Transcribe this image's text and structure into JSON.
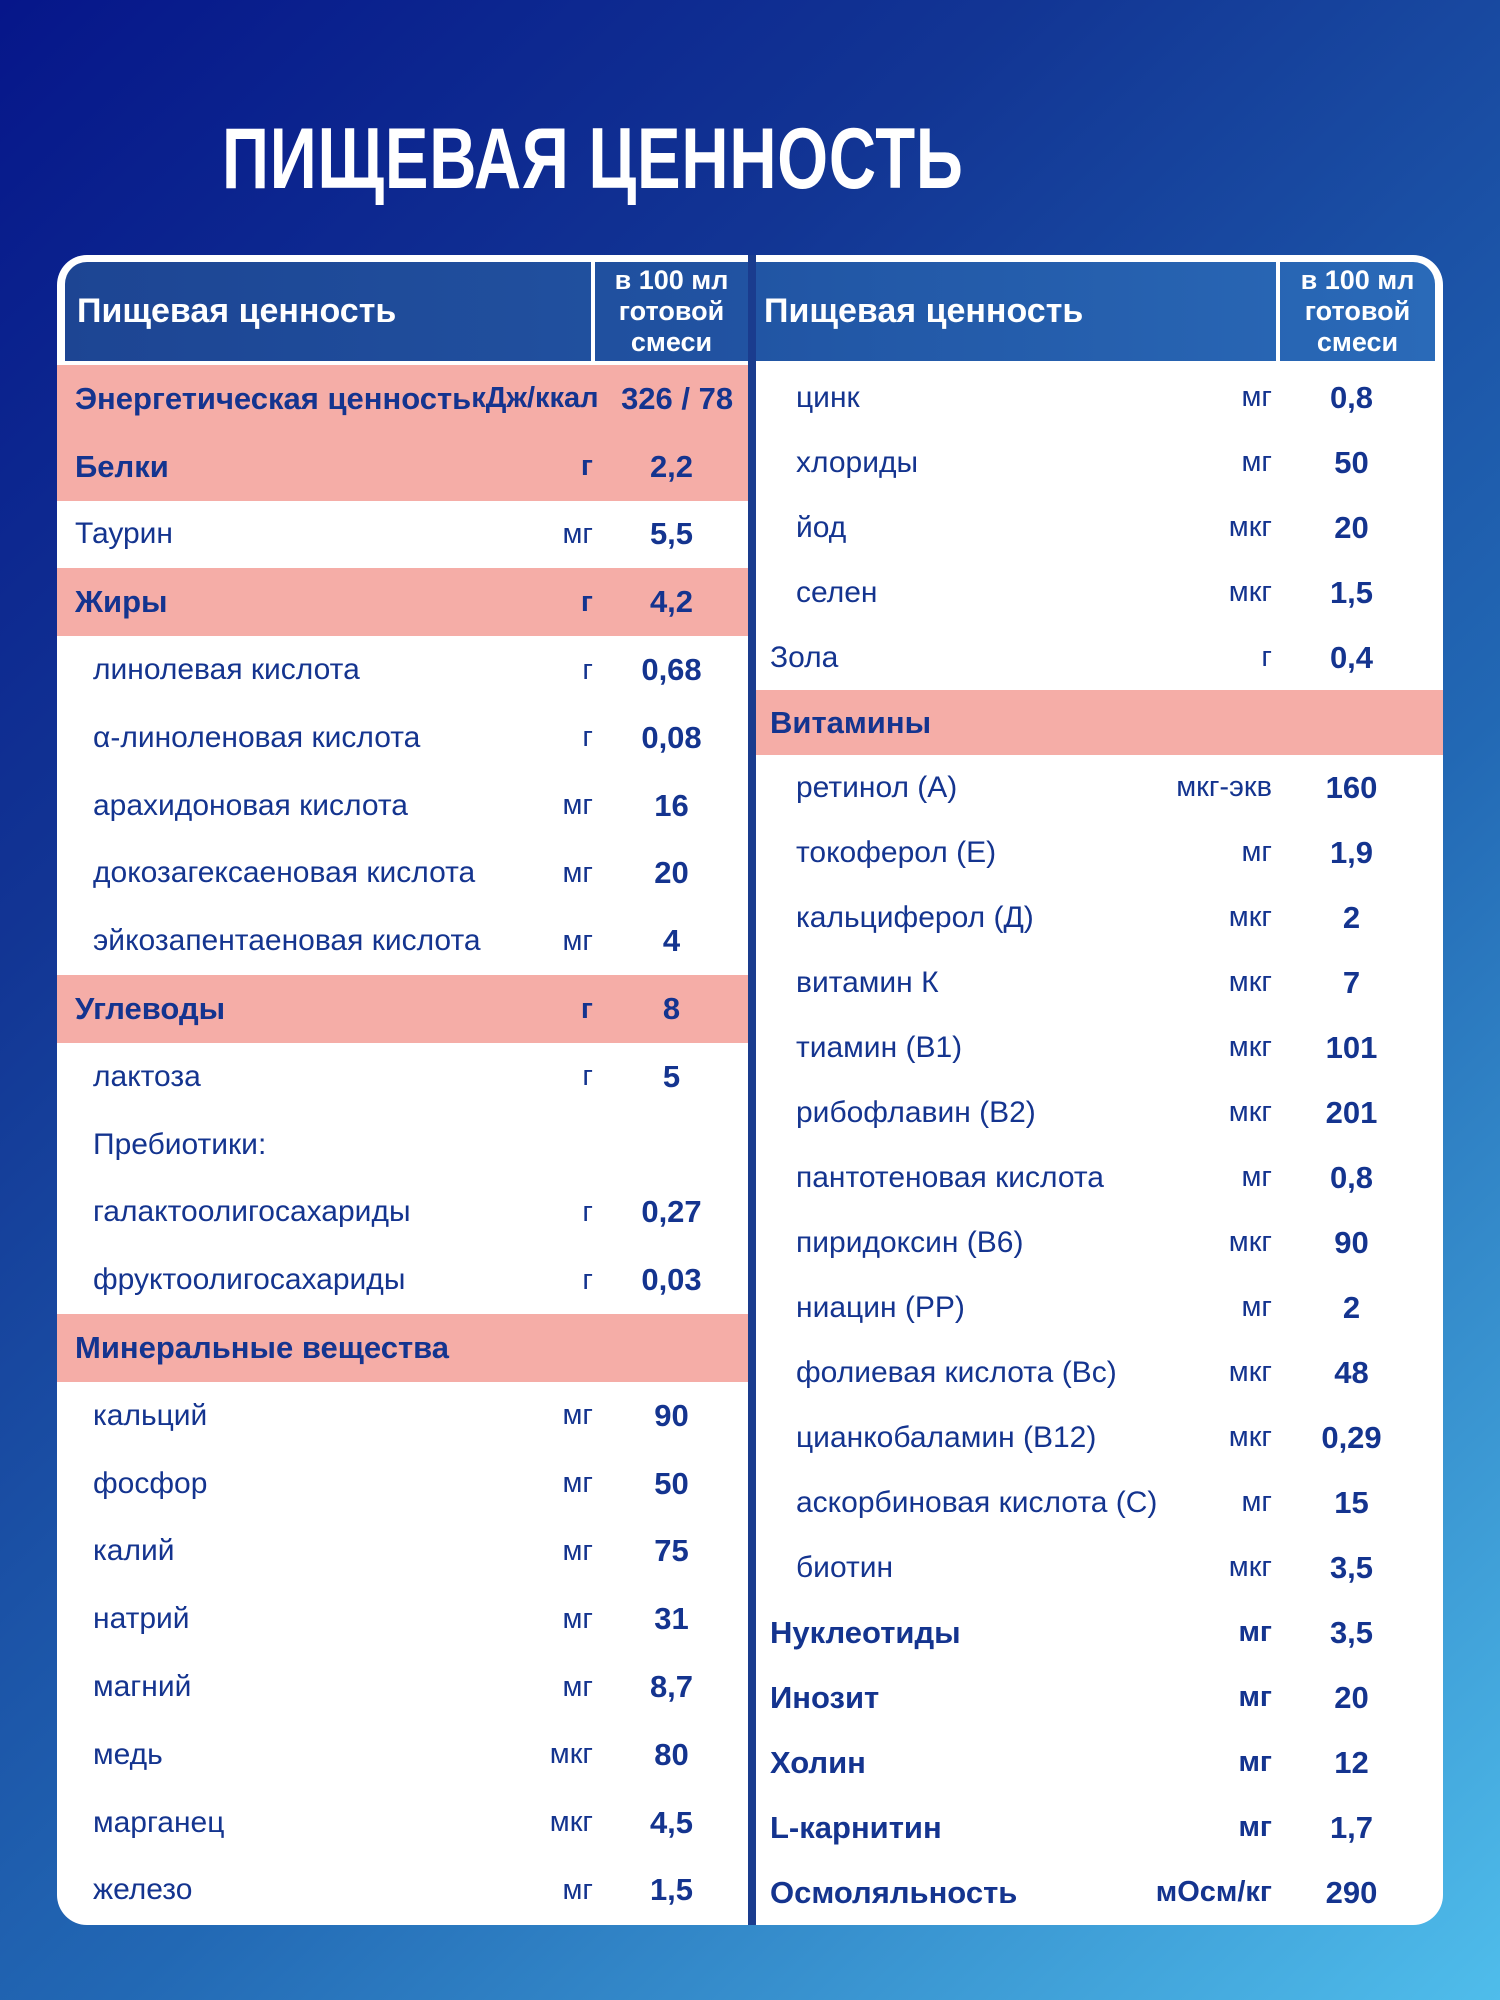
{
  "page": {
    "title": "ПИЩЕВАЯ ЦЕННОСТЬ"
  },
  "colors": {
    "pink": "#f5ada7",
    "header_blue_left": "#1d4593",
    "header_blue_right": "#2a6ab8",
    "navy_text": "#14348f",
    "divider": "#1a3c8e",
    "bg_top": "#06168a",
    "bg_bottom": "#4fbdeb",
    "card": "#ffffff",
    "title": "#ffffff"
  },
  "table": {
    "columns": [
      {
        "header": {
          "label": "Пищевая ценность",
          "value_header": "в 100 мл готовой смеси"
        },
        "rows": [
          {
            "type": "section",
            "label": "Энергетическая ценность",
            "unit": "кДж/ккал",
            "value": "326 / 78"
          },
          {
            "type": "section",
            "label": "Белки",
            "unit": "г",
            "value": "2,2"
          },
          {
            "type": "plain",
            "label": "Таурин",
            "unit": "мг",
            "value": "5,5"
          },
          {
            "type": "section",
            "label": "Жиры",
            "unit": "г",
            "value": "4,2"
          },
          {
            "type": "item",
            "label": "линолевая кислота",
            "unit": "г",
            "value": "0,68"
          },
          {
            "type": "item",
            "label": "α-линоленовая кислота",
            "unit": "г",
            "value": "0,08"
          },
          {
            "type": "item",
            "label": "арахидоновая кислота",
            "unit": "мг",
            "value": "16"
          },
          {
            "type": "item",
            "label": "докозагексаеновая кислота",
            "unit": "мг",
            "value": "20"
          },
          {
            "type": "item",
            "label": "эйкозапентаеновая кислота",
            "unit": "мг",
            "value": "4"
          },
          {
            "type": "section",
            "label": "Углеводы",
            "unit": "г",
            "value": "8"
          },
          {
            "type": "item",
            "label": "лактоза",
            "unit": "г",
            "value": "5"
          },
          {
            "type": "item",
            "label": "Пребиотики:",
            "unit": "",
            "value": ""
          },
          {
            "type": "item",
            "label": "галактоолигосахариды",
            "unit": "г",
            "value": "0,27"
          },
          {
            "type": "item",
            "label": "фруктоолигосахариды",
            "unit": "г",
            "value": "0,03"
          },
          {
            "type": "section-title",
            "label": "Минеральные вещества",
            "unit": "",
            "value": ""
          },
          {
            "type": "item",
            "label": "кальций",
            "unit": "мг",
            "value": "90"
          },
          {
            "type": "item",
            "label": "фосфор",
            "unit": "мг",
            "value": "50"
          },
          {
            "type": "item",
            "label": "калий",
            "unit": "мг",
            "value": "75"
          },
          {
            "type": "item",
            "label": "натрий",
            "unit": "мг",
            "value": "31"
          },
          {
            "type": "item",
            "label": "магний",
            "unit": "мг",
            "value": "8,7"
          },
          {
            "type": "item",
            "label": "медь",
            "unit": "мкг",
            "value": "80"
          },
          {
            "type": "item",
            "label": "марганец",
            "unit": "мкг",
            "value": "4,5"
          },
          {
            "type": "item",
            "label": "железо",
            "unit": "мг",
            "value": "1,5"
          }
        ]
      },
      {
        "header": {
          "label": "Пищевая ценность",
          "value_header": "в 100 мл готовой смеси"
        },
        "rows": [
          {
            "type": "item",
            "label": "цинк",
            "unit": "мг",
            "value": "0,8"
          },
          {
            "type": "item",
            "label": "хлориды",
            "unit": "мг",
            "value": "50"
          },
          {
            "type": "item",
            "label": "йод",
            "unit": "мкг",
            "value": "20"
          },
          {
            "type": "item",
            "label": "селен",
            "unit": "мкг",
            "value": "1,5"
          },
          {
            "type": "plain",
            "label": "Зола",
            "unit": "г",
            "value": "0,4"
          },
          {
            "type": "section-title",
            "label": "Витамины",
            "unit": "",
            "value": ""
          },
          {
            "type": "item",
            "label": "ретинол (А)",
            "unit": "мкг-экв",
            "value": "160"
          },
          {
            "type": "item",
            "label": "токоферол (Е)",
            "unit": "мг",
            "value": "1,9"
          },
          {
            "type": "item",
            "label": "кальциферол (Д)",
            "unit": "мкг",
            "value": "2"
          },
          {
            "type": "item",
            "label": "витамин К",
            "unit": "мкг",
            "value": "7"
          },
          {
            "type": "item",
            "label": "тиамин (В1)",
            "unit": "мкг",
            "value": "101"
          },
          {
            "type": "item",
            "label": "рибофлавин (В2)",
            "unit": "мкг",
            "value": "201"
          },
          {
            "type": "item",
            "label": "пантотеновая кислота",
            "unit": "мг",
            "value": "0,8"
          },
          {
            "type": "item",
            "label": "пиридоксин (В6)",
            "unit": "мкг",
            "value": "90"
          },
          {
            "type": "item",
            "label": "ниацин (РР)",
            "unit": "мг",
            "value": "2"
          },
          {
            "type": "item",
            "label": "фолиевая кислота (Вс)",
            "unit": "мкг",
            "value": "48"
          },
          {
            "type": "item",
            "label": "цианкобаламин (В12)",
            "unit": "мкг",
            "value": "0,29"
          },
          {
            "type": "item",
            "label": "аскорбиновая кислота (С)",
            "unit": "мг",
            "value": "15"
          },
          {
            "type": "item",
            "label": "биотин",
            "unit": "мкг",
            "value": "3,5"
          },
          {
            "type": "bold",
            "label": "Нуклеотиды",
            "unit": "мг",
            "value": "3,5"
          },
          {
            "type": "bold",
            "label": "Инозит",
            "unit": "мг",
            "value": "20"
          },
          {
            "type": "bold",
            "label": "Холин",
            "unit": "мг",
            "value": "12"
          },
          {
            "type": "bold",
            "label": "L-карнитин",
            "unit": "мг",
            "value": "1,7"
          },
          {
            "type": "bold",
            "label": "Осмоляльность",
            "unit": "мОсм/кг",
            "value": "290"
          }
        ]
      }
    ]
  }
}
